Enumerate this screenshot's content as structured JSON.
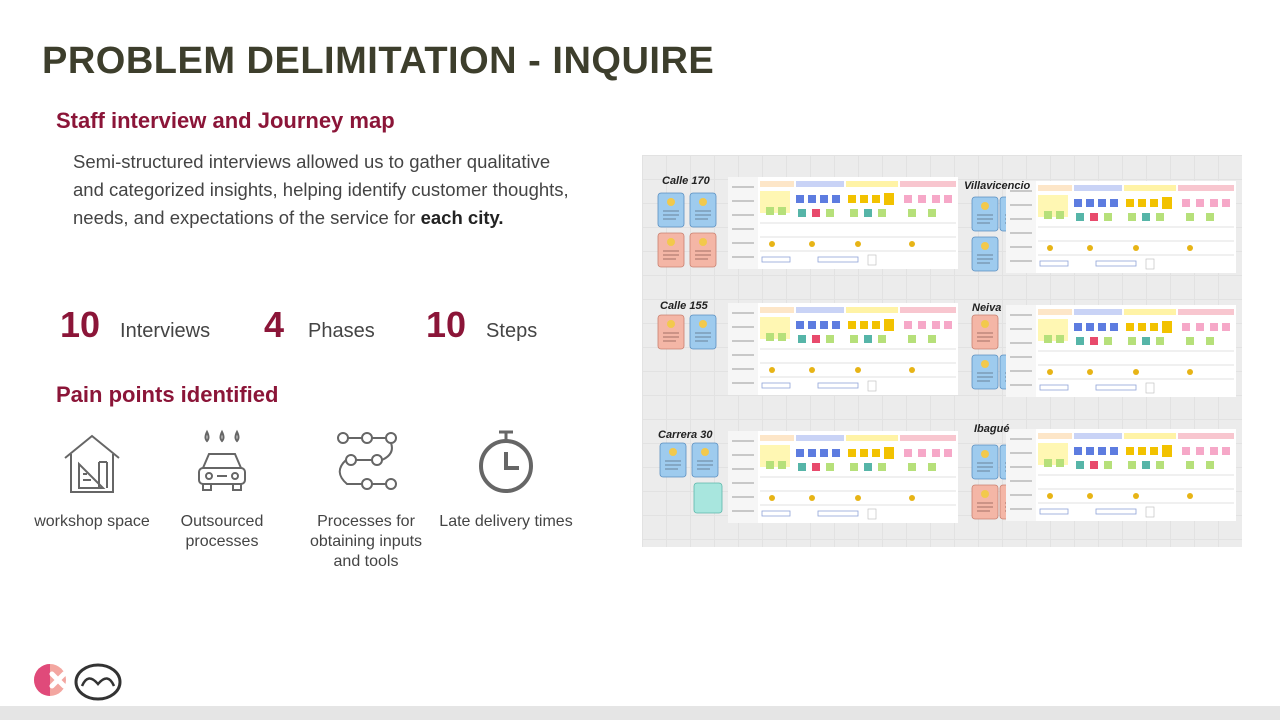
{
  "title": "PROBLEM DELIMITATION - INQUIRE",
  "section": {
    "title": "Staff interview and Journey map",
    "text": "Semi-structured interviews allowed us to gather qualitative and categorized insights, helping identify customer thoughts, needs, and expectations of the service for",
    "text_bold": "each city."
  },
  "stats": [
    {
      "value": "10",
      "label": "Interviews"
    },
    {
      "value": "4",
      "label": "Phases"
    },
    {
      "value": "10",
      "label": "Steps"
    }
  ],
  "pain_points": {
    "title": "Pain points identified",
    "items": [
      {
        "icon": "workshop-house-icon",
        "label": "workshop space"
      },
      {
        "icon": "car-rain-icon",
        "label": "Outsourced processes"
      },
      {
        "icon": "process-flow-icon",
        "label": "Processes for obtaining inputs and tools"
      },
      {
        "icon": "stopwatch-icon",
        "label": "Late delivery times"
      }
    ]
  },
  "journey_maps": {
    "cities": [
      "Calle 170",
      "Villavicencio",
      "Calle 155",
      "Neiva",
      "Carrera 30",
      "Ibagué"
    ]
  },
  "colors": {
    "title": "#3d3e2c",
    "accent": "#8b1538",
    "text": "#444444"
  },
  "logos": [
    "brand-x-logo",
    "mazda-logo"
  ]
}
